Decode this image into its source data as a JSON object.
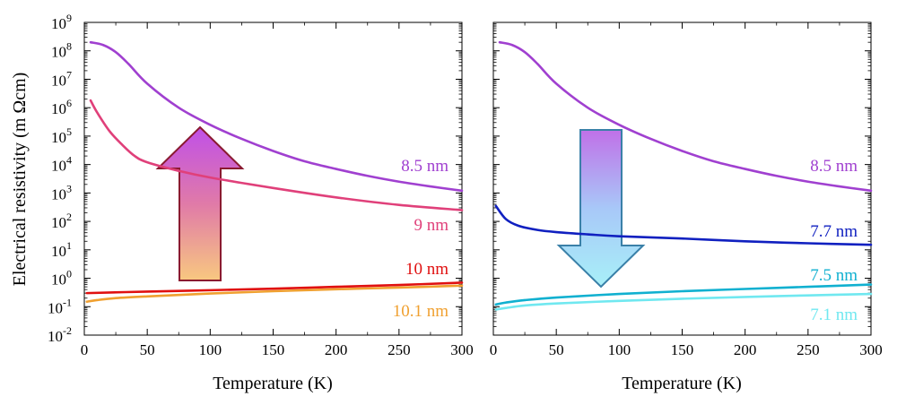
{
  "chart_data": [
    {
      "type": "line",
      "xlabel": "Temperature (K)",
      "ylabel": "Electrical resistivity (m Ωcm)",
      "xlim": [
        0,
        300
      ],
      "ylim": [
        0.01,
        1000000000
      ],
      "yscale": "log",
      "x_ticks": [
        0,
        50,
        100,
        150,
        200,
        250,
        300
      ],
      "y_ticks": [
        {
          "value": 0.01,
          "base": "10",
          "exp": "-2"
        },
        {
          "value": 0.1,
          "base": "10",
          "exp": "-1"
        },
        {
          "value": 1,
          "base": "10",
          "exp": "0"
        },
        {
          "value": 10,
          "base": "10",
          "exp": "1"
        },
        {
          "value": 100,
          "base": "10",
          "exp": "2"
        },
        {
          "value": 1000,
          "base": "10",
          "exp": "3"
        },
        {
          "value": 10000,
          "base": "10",
          "exp": "4"
        },
        {
          "value": 100000,
          "base": "10",
          "exp": "5"
        },
        {
          "value": 1000000,
          "base": "10",
          "exp": "6"
        },
        {
          "value": 10000000,
          "base": "10",
          "exp": "7"
        },
        {
          "value": 100000000,
          "base": "10",
          "exp": "8"
        },
        {
          "value": 1000000000,
          "base": "10",
          "exp": "9"
        }
      ],
      "arrow": {
        "direction": "up"
      },
      "series": [
        {
          "name": "8.5 nm",
          "color": "#a040d0",
          "x": [
            5,
            15,
            25,
            35,
            50,
            75,
            100,
            125,
            150,
            175,
            200,
            225,
            250,
            275,
            300
          ],
          "y": [
            200000000,
            160000000,
            90000000,
            35000000,
            7000000,
            1000000,
            250000,
            80000,
            30000,
            13000,
            7000,
            4000,
            2500,
            1700,
            1200
          ]
        },
        {
          "name": "9 nm",
          "color": "#e0407a",
          "x": [
            5,
            10,
            20,
            30,
            40,
            50,
            75,
            100,
            150,
            200,
            250,
            300
          ],
          "y": [
            1800000,
            700000,
            150000,
            50000,
            20000,
            12000,
            6000,
            3500,
            1500,
            700,
            380,
            250
          ]
        },
        {
          "name": "10 nm",
          "color": "#e01010",
          "x": [
            2,
            50,
            100,
            150,
            200,
            250,
            300
          ],
          "y": [
            0.3,
            0.34,
            0.38,
            0.43,
            0.5,
            0.58,
            0.7
          ]
        },
        {
          "name": "10.1 nm",
          "color": "#f0a030",
          "x": [
            2,
            10,
            25,
            50,
            100,
            150,
            200,
            250,
            300
          ],
          "y": [
            0.15,
            0.17,
            0.2,
            0.23,
            0.29,
            0.35,
            0.41,
            0.47,
            0.55
          ]
        }
      ]
    },
    {
      "type": "line",
      "xlabel": "Temperature (K)",
      "xlim": [
        0,
        300
      ],
      "ylim": [
        0.01,
        1000000000
      ],
      "yscale": "log",
      "x_ticks": [
        0,
        50,
        100,
        150,
        200,
        250,
        300
      ],
      "arrow": {
        "direction": "down"
      },
      "series": [
        {
          "name": "8.5 nm",
          "color": "#a040d0",
          "x": [
            5,
            15,
            25,
            35,
            50,
            75,
            100,
            125,
            150,
            175,
            200,
            225,
            250,
            275,
            300
          ],
          "y": [
            200000000,
            160000000,
            90000000,
            35000000,
            7000000,
            1000000,
            250000,
            80000,
            30000,
            13000,
            7000,
            4000,
            2500,
            1700,
            1200
          ]
        },
        {
          "name": "7.7 nm",
          "color": "#1020c0",
          "x": [
            2,
            10,
            20,
            35,
            50,
            75,
            100,
            150,
            200,
            250,
            300
          ],
          "y": [
            350,
            120,
            70,
            50,
            42,
            35,
            30,
            25,
            20,
            17,
            15
          ]
        },
        {
          "name": "7.5 nm",
          "color": "#10b0d0",
          "x": [
            2,
            10,
            25,
            50,
            100,
            150,
            200,
            250,
            300
          ],
          "y": [
            0.12,
            0.14,
            0.17,
            0.21,
            0.28,
            0.35,
            0.42,
            0.5,
            0.6
          ]
        },
        {
          "name": "7.1 nm",
          "color": "#70e8f0",
          "x": [
            2,
            10,
            25,
            50,
            100,
            150,
            200,
            250,
            300
          ],
          "y": [
            0.08,
            0.09,
            0.11,
            0.13,
            0.16,
            0.19,
            0.22,
            0.25,
            0.28
          ]
        }
      ]
    }
  ]
}
